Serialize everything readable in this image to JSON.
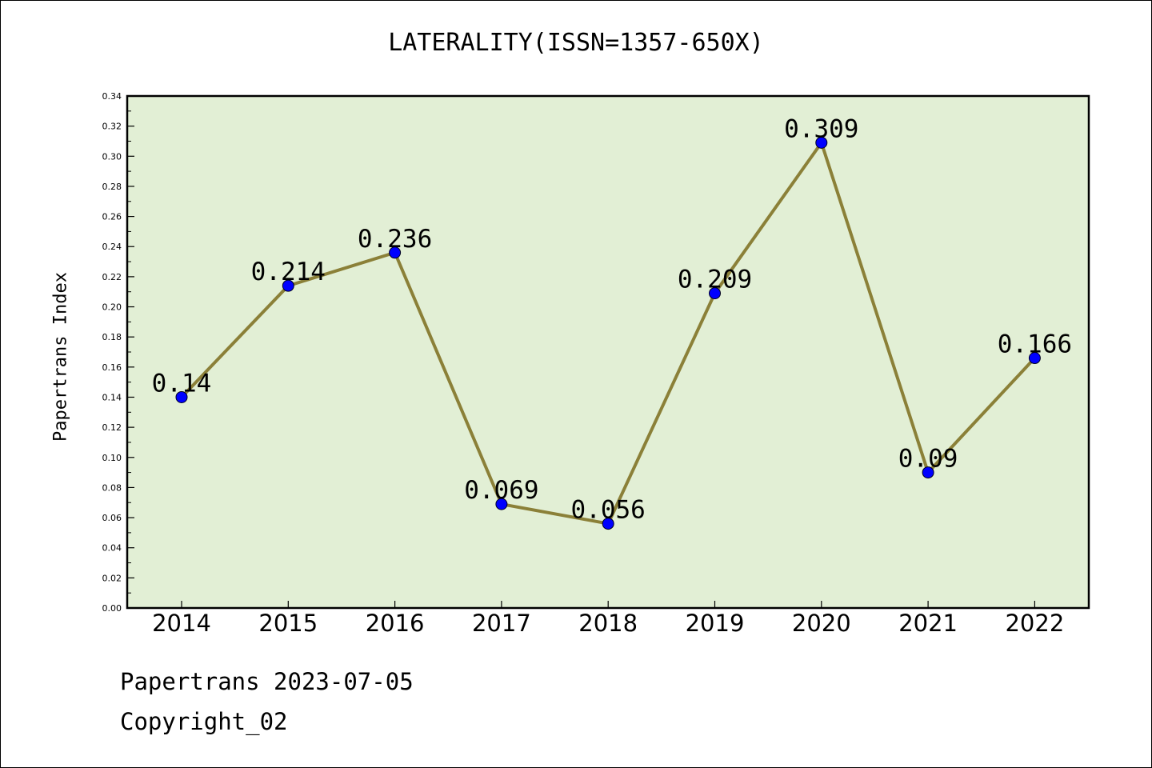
{
  "chart_data": {
    "type": "line",
    "title": "LATERALITY(ISSN=1357-650X)",
    "xlabel": "",
    "ylabel": "Papertrans Index",
    "categories": [
      "2014",
      "2015",
      "2016",
      "2017",
      "2018",
      "2019",
      "2020",
      "2021",
      "2022"
    ],
    "series": [
      {
        "values": [
          0.14,
          0.214,
          0.236,
          0.069,
          0.056,
          0.209,
          0.309,
          0.09,
          0.166
        ],
        "labels": [
          "0.14",
          "0.214",
          "0.236",
          "0.069",
          "0.056",
          "0.209",
          "0.309",
          "0.09",
          "0.166"
        ]
      }
    ],
    "ylim": [
      0,
      0.34
    ],
    "yticks": [
      "0.00",
      "0.02",
      "0.04",
      "0.06",
      "0.08",
      "0.10",
      "0.12",
      "0.14",
      "0.16",
      "0.18",
      "0.20",
      "0.22",
      "0.24",
      "0.26",
      "0.28",
      "0.30",
      "0.32",
      "0.34"
    ],
    "grid": false,
    "legend": "none",
    "colors": {
      "plot_background": "#e2efd5",
      "line": "#8b8038",
      "marker": "#0000ff"
    }
  },
  "footer": {
    "date_line": "Papertrans 2023-07-05",
    "copyright": "Copyright_02"
  }
}
